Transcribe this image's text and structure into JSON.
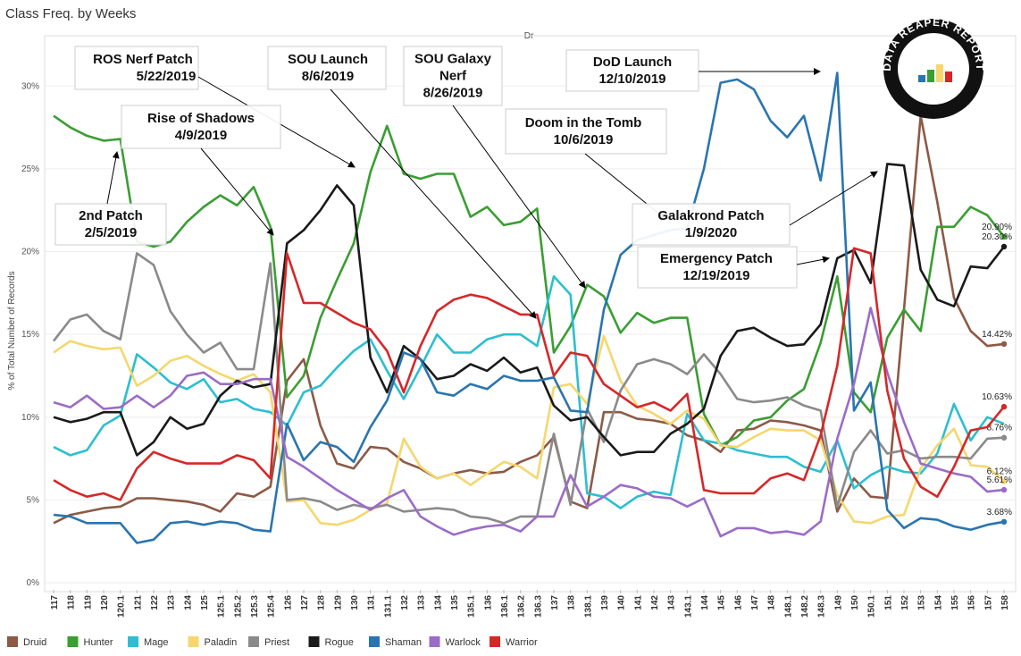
{
  "chart_data": {
    "type": "line",
    "title": "Class Freq. by Weeks",
    "subtitle": "Dr",
    "y_label": "% of Total Number of Records",
    "logo": "DATA REAPER REPORT",
    "categories": [
      "117",
      "118",
      "119",
      "120",
      "120.1",
      "121",
      "122",
      "123",
      "124",
      "125",
      "125.1",
      "125.2",
      "125.3",
      "125.4",
      "126",
      "127",
      "128",
      "129",
      "130",
      "131",
      "131.1",
      "132",
      "133",
      "134",
      "135",
      "135.1",
      "136",
      "136.1",
      "136.2",
      "136.3",
      "137",
      "138",
      "138.1",
      "139",
      "140",
      "141",
      "142",
      "143",
      "143.1",
      "144",
      "145",
      "146",
      "147",
      "148",
      "148.1",
      "148.2",
      "148.3",
      "149",
      "150",
      "150.1",
      "151",
      "152",
      "153",
      "154",
      "155",
      "156",
      "157",
      "158"
    ],
    "ylim": [
      0,
      32.5
    ],
    "yticks": [
      {
        "value": 0,
        "label": "0%"
      },
      {
        "value": 5,
        "label": "5%"
      },
      {
        "value": 10,
        "label": "10%"
      },
      {
        "value": 15,
        "label": "15%"
      },
      {
        "value": 20,
        "label": "20%"
      },
      {
        "value": 25,
        "label": "25%"
      },
      {
        "value": 30,
        "label": "30%"
      }
    ],
    "grid": true,
    "series": [
      {
        "name": "Druid",
        "color": "#8c5a46",
        "end_label": "14.42%",
        "values": [
          3.6,
          4.1,
          4.3,
          4.5,
          4.6,
          5.1,
          5.1,
          5.0,
          4.9,
          4.7,
          4.3,
          5.4,
          5.2,
          5.8,
          12.2,
          13.5,
          9.5,
          7.2,
          6.9,
          8.2,
          8.1,
          7.3,
          6.9,
          6.3,
          6.6,
          6.8,
          6.6,
          6.7,
          7.3,
          7.7,
          8.8,
          4.9,
          4.5,
          10.3,
          10.3,
          9.9,
          9.8,
          9.6,
          8.9,
          8.6,
          7.9,
          9.2,
          9.3,
          9.8,
          9.7,
          9.5,
          9.2,
          4.3,
          6.3,
          5.2,
          5.1,
          16.5,
          28.2,
          23.0,
          17.2,
          15.2,
          14.3,
          14.42
        ]
      },
      {
        "name": "Hunter",
        "color": "#3a9e32",
        "end_label": "20.90%",
        "values": [
          28.2,
          27.5,
          27.0,
          26.7,
          26.8,
          20.6,
          20.3,
          20.6,
          21.8,
          22.7,
          23.4,
          22.8,
          23.9,
          21.5,
          11.2,
          12.5,
          16.0,
          18.3,
          20.5,
          24.8,
          27.6,
          24.7,
          24.4,
          24.7,
          24.7,
          22.1,
          22.7,
          21.6,
          21.8,
          22.6,
          13.9,
          15.5,
          18.0,
          17.3,
          15.1,
          16.3,
          15.7,
          16.0,
          16.0,
          10.2,
          8.3,
          8.8,
          9.8,
          10.0,
          11.0,
          11.7,
          14.5,
          18.5,
          11.5,
          10.3,
          14.8,
          16.5,
          15.2,
          21.5,
          21.5,
          22.7,
          22.2,
          20.9
        ]
      },
      {
        "name": "Mage",
        "color": "#2bbfd0",
        "values": [
          8.2,
          7.7,
          8.0,
          9.5,
          10.1,
          13.8,
          13.0,
          12.1,
          11.7,
          12.3,
          10.9,
          11.1,
          10.5,
          10.3,
          9.5,
          11.5,
          11.9,
          13.0,
          14.0,
          14.7,
          12.8,
          11.1,
          13.0,
          15.0,
          13.9,
          13.9,
          14.7,
          15.0,
          15.0,
          14.3,
          18.5,
          17.4,
          5.4,
          5.2,
          4.5,
          5.2,
          5.5,
          5.3,
          10.2,
          8.6,
          8.4,
          8.0,
          7.8,
          7.6,
          7.6,
          7.0,
          6.7,
          8.6,
          5.7,
          6.5,
          7.0,
          6.7,
          6.6,
          7.8,
          10.8,
          8.6,
          10.0,
          9.6
        ]
      },
      {
        "name": "Paladin",
        "color": "#f5d76e",
        "end_label": "6.12%",
        "values": [
          13.9,
          14.6,
          14.3,
          14.1,
          14.2,
          11.9,
          12.5,
          13.4,
          13.7,
          13.1,
          12.6,
          12.2,
          12.6,
          11.5,
          4.9,
          5.0,
          3.6,
          3.5,
          3.8,
          4.4,
          4.8,
          8.7,
          7.0,
          6.3,
          6.6,
          5.9,
          6.6,
          7.3,
          7.0,
          6.3,
          11.8,
          12.0,
          10.8,
          14.9,
          12.2,
          10.7,
          10.2,
          9.6,
          10.4,
          9.9,
          8.3,
          8.2,
          8.8,
          9.3,
          9.2,
          9.2,
          8.6,
          5.3,
          3.7,
          3.6,
          4.0,
          4.1,
          6.9,
          8.3,
          9.3,
          7.1,
          7.0,
          6.12
        ]
      },
      {
        "name": "Priest",
        "color": "#8a8a8a",
        "end_label": "8.76%",
        "values": [
          14.6,
          15.9,
          16.2,
          15.2,
          14.7,
          19.9,
          19.2,
          16.4,
          15.0,
          13.9,
          14.5,
          12.9,
          12.9,
          19.3,
          5.0,
          5.1,
          4.9,
          4.4,
          4.7,
          4.5,
          4.7,
          4.3,
          4.4,
          4.5,
          4.4,
          4.0,
          3.9,
          3.6,
          4.0,
          4.0,
          9.0,
          4.7,
          10.5,
          8.5,
          11.6,
          13.2,
          13.5,
          13.2,
          12.6,
          13.8,
          12.6,
          11.1,
          10.9,
          11.0,
          11.2,
          10.7,
          10.4,
          4.6,
          7.9,
          9.2,
          7.8,
          8.0,
          7.5,
          7.6,
          7.6,
          7.5,
          8.7,
          8.76
        ]
      },
      {
        "name": "Rogue",
        "color": "#1a1a1a",
        "end_label": "20.30%",
        "values": [
          10.0,
          9.7,
          9.9,
          10.3,
          10.3,
          7.7,
          8.5,
          10.0,
          9.3,
          9.6,
          11.3,
          12.2,
          11.8,
          12.0,
          20.5,
          21.3,
          22.5,
          24.0,
          22.8,
          13.6,
          11.5,
          14.3,
          13.5,
          12.3,
          12.5,
          13.2,
          12.8,
          13.6,
          12.7,
          13.0,
          10.7,
          9.8,
          10.0,
          8.8,
          7.7,
          7.9,
          7.9,
          9.0,
          9.6,
          10.5,
          13.7,
          15.2,
          15.4,
          14.8,
          14.3,
          14.4,
          15.6,
          19.6,
          20.1,
          18.1,
          25.3,
          25.2,
          18.9,
          17.1,
          16.7,
          19.1,
          19.0,
          20.3
        ]
      },
      {
        "name": "Shaman",
        "color": "#2a75b0",
        "end_label": "3.68%",
        "values": [
          4.1,
          4.0,
          3.6,
          3.6,
          3.6,
          2.4,
          2.6,
          3.6,
          3.7,
          3.5,
          3.7,
          3.6,
          3.2,
          3.1,
          9.6,
          7.4,
          8.5,
          8.2,
          7.3,
          9.4,
          11.0,
          13.9,
          13.5,
          11.5,
          11.3,
          12.0,
          11.7,
          12.5,
          12.2,
          12.2,
          12.4,
          10.4,
          10.3,
          16.5,
          19.8,
          20.7,
          21.0,
          21.3,
          21.4,
          25.0,
          30.2,
          30.4,
          29.8,
          27.9,
          26.9,
          28.2,
          24.3,
          30.8,
          10.4,
          12.1,
          4.4,
          3.3,
          3.9,
          3.8,
          3.4,
          3.2,
          3.5,
          3.68
        ]
      },
      {
        "name": "Warlock",
        "color": "#9b6cc7",
        "end_label": "5.61%",
        "values": [
          10.9,
          10.6,
          11.3,
          10.5,
          10.6,
          11.3,
          10.6,
          11.3,
          12.5,
          12.7,
          12.0,
          12.0,
          12.3,
          12.3,
          7.6,
          7.0,
          6.3,
          5.6,
          5.0,
          4.4,
          5.1,
          5.6,
          4.0,
          3.4,
          2.9,
          3.2,
          3.4,
          3.5,
          3.1,
          4.0,
          4.0,
          6.5,
          4.6,
          5.2,
          5.9,
          5.7,
          5.2,
          5.1,
          4.6,
          5.1,
          2.8,
          3.3,
          3.3,
          3.0,
          3.1,
          2.9,
          3.7,
          8.7,
          12.0,
          16.6,
          12.7,
          9.7,
          7.2,
          6.9,
          6.6,
          6.4,
          5.5,
          5.61
        ]
      },
      {
        "name": "Warrior",
        "color": "#d62728",
        "end_label": "10.63%",
        "values": [
          6.2,
          5.6,
          5.2,
          5.4,
          5.0,
          6.9,
          7.9,
          7.5,
          7.2,
          7.2,
          7.2,
          7.7,
          7.4,
          6.3,
          19.9,
          16.9,
          16.9,
          16.3,
          15.7,
          15.3,
          14.0,
          11.5,
          14.3,
          16.4,
          17.1,
          17.4,
          17.2,
          16.7,
          16.2,
          16.2,
          12.5,
          13.9,
          13.7,
          12.0,
          11.3,
          10.6,
          10.9,
          10.4,
          11.4,
          5.6,
          5.4,
          5.4,
          5.4,
          6.3,
          6.6,
          6.2,
          8.9,
          13.1,
          20.2,
          19.9,
          11.6,
          7.5,
          5.8,
          5.2,
          7.0,
          9.2,
          9.4,
          10.63
        ]
      }
    ],
    "annotations": [
      {
        "lines": [
          "2nd Patch",
          "2/5/2019"
        ]
      },
      {
        "lines": [
          "ROS Nerf Patch",
          "5/22/2019"
        ]
      },
      {
        "lines": [
          "Rise of Shadows",
          "4/9/2019"
        ]
      },
      {
        "lines": [
          "SOU Launch",
          "8/6/2019"
        ]
      },
      {
        "lines": [
          "SOU Galaxy",
          "Nerf",
          "8/26/2019"
        ]
      },
      {
        "lines": [
          "DoD Launch",
          "12/10/2019"
        ]
      },
      {
        "lines": [
          "Doom in the Tomb",
          "10/6/2019"
        ]
      },
      {
        "lines": [
          "Galakrond Patch",
          "1/9/2020"
        ]
      },
      {
        "lines": [
          "Emergency Patch",
          "12/19/2019"
        ]
      }
    ]
  }
}
